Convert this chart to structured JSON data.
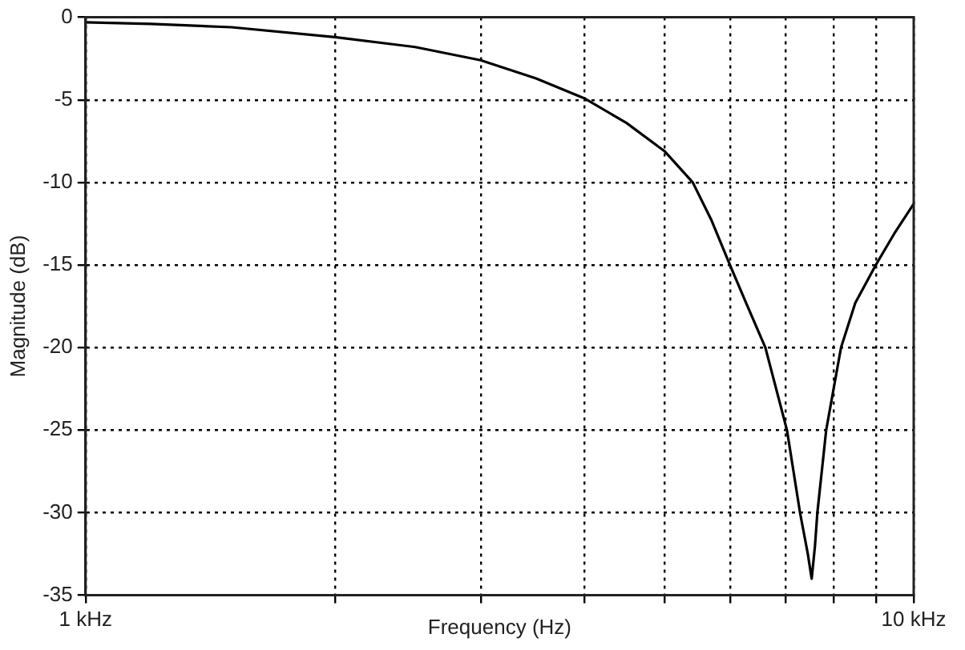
{
  "chart_data": {
    "type": "line",
    "xlabel": "Frequency (Hz)",
    "ylabel": "Magnitude (dB)",
    "log": "x",
    "xlim": [
      1,
      10
    ],
    "xticks": [
      {
        "value": 1,
        "label": "1 kHz"
      },
      {
        "value": 2,
        "label": null
      },
      {
        "value": 3,
        "label": null
      },
      {
        "value": 4,
        "label": null
      },
      {
        "value": 5,
        "label": null
      },
      {
        "value": 6,
        "label": null
      },
      {
        "value": 7,
        "label": null
      },
      {
        "value": 8,
        "label": null
      },
      {
        "value": 9,
        "label": null
      },
      {
        "value": 10,
        "label": "10 kHz"
      }
    ],
    "ylim": [
      -35,
      0
    ],
    "yticks": [
      -35,
      -30,
      -25,
      -20,
      -15,
      -10,
      -5,
      0
    ],
    "grid": true,
    "marker": "none",
    "line_style": "solid",
    "x": [
      1,
      1.2,
      1.5,
      2,
      2.5,
      3,
      3.5,
      4,
      4.5,
      5,
      5.41,
      5.7,
      6,
      6.3,
      6.62,
      7.03,
      7.29,
      7.45,
      7.53,
      7.6,
      7.65,
      7.84,
      8.17,
      8.5,
      9,
      9.5,
      10
    ],
    "series": [
      {
        "color": "#000000",
        "values": [
          -0.3,
          -0.4,
          -0.6,
          -1.2,
          -1.8,
          -2.6,
          -3.7,
          -4.9,
          -6.4,
          -8.1,
          -10,
          -12.3,
          -15,
          -17.5,
          -20,
          -25,
          -30,
          -32.5,
          -34,
          -32,
          -30,
          -25,
          -20,
          -17.3,
          -15,
          -13,
          -11.3
        ]
      }
    ]
  }
}
